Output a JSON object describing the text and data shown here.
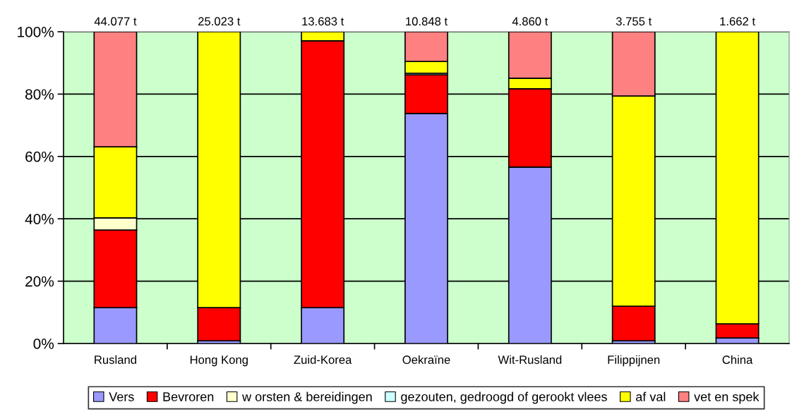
{
  "chart_data": {
    "type": "bar",
    "stacked": true,
    "categories": [
      "Rusland",
      "Hong Kong",
      "Zuid-Korea",
      "Oekraïne",
      "Wit-Rusland",
      "Filippijnen",
      "China"
    ],
    "series": [
      {
        "name": "Vers",
        "color": "#9999ff",
        "values": [
          11.5,
          0.9,
          11.5,
          73.8,
          56.6,
          0.9,
          1.8
        ]
      },
      {
        "name": "Bevroren",
        "color": "#ff0000",
        "values": [
          24.9,
          10.6,
          85.6,
          12.4,
          25.1,
          11.1,
          4.5
        ]
      },
      {
        "name": "w orsten & bereidingen",
        "color": "#ffffcc",
        "values": [
          3.9,
          null,
          null,
          null,
          null,
          null,
          null
        ]
      },
      {
        "name": "gezouten, gedroogd of gerookt vlees",
        "color": "#ccffff",
        "values": [
          null,
          null,
          null,
          0.5,
          null,
          null,
          null
        ]
      },
      {
        "name": "af val",
        "color": "#ffff00",
        "values": [
          22.8,
          88.5,
          2.9,
          3.8,
          3.4,
          67.4,
          93.7
        ]
      },
      {
        "name": "vet en spek",
        "color": "#ff8080",
        "values": [
          36.9,
          null,
          null,
          9.5,
          14.9,
          20.6,
          null
        ]
      }
    ],
    "annotations": [
      {
        "text": "44.077 t",
        "x": "Rusland",
        "y": 100
      },
      {
        "text": "25.023 t",
        "x": "Hong Kong",
        "y": 100
      },
      {
        "text": "13.683 t",
        "x": "Zuid-Korea",
        "y": 100
      },
      {
        "text": "10.848 t",
        "x": "Oekraïne",
        "y": 100
      },
      {
        "text": "4.860 t",
        "x": "Wit-Rusland",
        "y": 100
      },
      {
        "text": "3.755 t",
        "x": "Filippijnen",
        "y": 100
      },
      {
        "text": "1.662 t",
        "x": "China",
        "y": 100
      }
    ],
    "ylim": [
      0,
      100
    ],
    "yticks": [
      {
        "value": 0,
        "label": "0%"
      },
      {
        "value": 20,
        "label": "20%"
      },
      {
        "value": 40,
        "label": "40%"
      },
      {
        "value": 60,
        "label": "60%"
      },
      {
        "value": 80,
        "label": "80%"
      },
      {
        "value": 100,
        "label": "100%"
      }
    ],
    "grid": "y",
    "legend": "bottom"
  }
}
